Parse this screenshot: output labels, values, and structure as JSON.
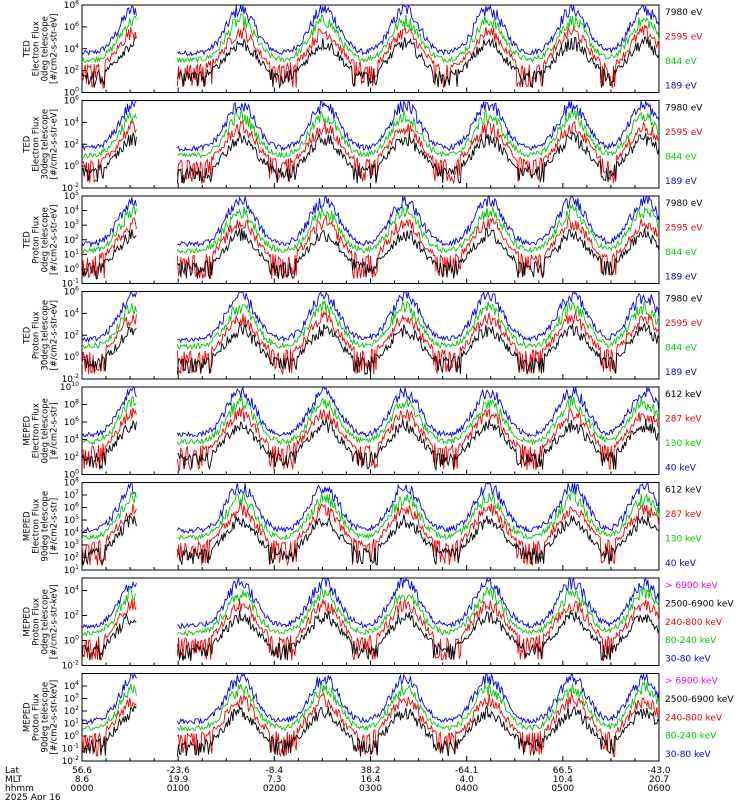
{
  "chart_data": {
    "type": "line",
    "date_label": "2025 Apr 16",
    "x_row_labels": [
      "Lat",
      "MLT",
      "hhmm"
    ],
    "x_ticks": [
      {
        "lat": "56.6",
        "mlt": "8.6",
        "hhmm": "0000"
      },
      {
        "lat": "-23.6",
        "mlt": "19.9",
        "hhmm": "0100"
      },
      {
        "lat": "-8.4",
        "mlt": "7.3",
        "hhmm": "0200"
      },
      {
        "lat": "38.2",
        "mlt": "16.4",
        "hhmm": "0300"
      },
      {
        "lat": "-64.1",
        "mlt": "4.0",
        "hhmm": "0400"
      },
      {
        "lat": "66.5",
        "mlt": "10.4",
        "hhmm": "0500"
      },
      {
        "lat": "-43.0",
        "mlt": "20.7",
        "hhmm": "0600"
      }
    ],
    "xlim": [
      "0000",
      "0600"
    ],
    "panels": [
      {
        "ylabel": [
          "TED",
          "Electron Flux",
          "0deg telescope",
          "[#/cm2-s-str-eV]"
        ],
        "y_exponents": [
          0,
          2,
          4,
          6,
          8
        ],
        "ylim_exp": [
          0,
          8
        ],
        "log_scale": true,
        "legend": [
          {
            "label": "7980 eV",
            "color": "#000000"
          },
          {
            "label": "2595 eV",
            "color": "#ff0000"
          },
          {
            "label": "844 eV",
            "color": "#00cc00"
          },
          {
            "label": "189 eV",
            "color": "#0000ff"
          }
        ]
      },
      {
        "ylabel": [
          "TED",
          "Electron Flux",
          "30deg telescope",
          "[#/cm2-s-str-eV]"
        ],
        "y_exponents": [
          -2,
          0,
          2,
          4,
          6
        ],
        "ylim_exp": [
          -2,
          6
        ],
        "log_scale": true,
        "legend": [
          {
            "label": "7980 eV",
            "color": "#000000"
          },
          {
            "label": "2595 eV",
            "color": "#ff0000"
          },
          {
            "label": "844 eV",
            "color": "#00cc00"
          },
          {
            "label": "189 eV",
            "color": "#0000ff"
          }
        ]
      },
      {
        "ylabel": [
          "TED",
          "Proton Flux",
          "0deg telescope",
          "[#/cm2-s-str-eV]"
        ],
        "y_exponents": [
          -1,
          0,
          1,
          2,
          3,
          4,
          5
        ],
        "ylim_exp": [
          -1,
          5
        ],
        "log_scale": true,
        "legend": [
          {
            "label": "7980 eV",
            "color": "#000000"
          },
          {
            "label": "2595 eV",
            "color": "#ff0000"
          },
          {
            "label": "844 eV",
            "color": "#00cc00"
          },
          {
            "label": "189 eV",
            "color": "#0000ff"
          }
        ]
      },
      {
        "ylabel": [
          "TED",
          "Proton Flux",
          "30deg telescope",
          "[#/cm2-s-str-eV]"
        ],
        "y_exponents": [
          -2,
          0,
          2,
          4,
          6
        ],
        "ylim_exp": [
          -2,
          6
        ],
        "log_scale": true,
        "legend": [
          {
            "label": "7980 eV",
            "color": "#000000"
          },
          {
            "label": "2595 eV",
            "color": "#ff0000"
          },
          {
            "label": "844 eV",
            "color": "#00cc00"
          },
          {
            "label": "189 eV",
            "color": "#0000ff"
          }
        ]
      },
      {
        "ylabel": [
          "MEPED",
          "Electron Flux",
          "0deg telescope",
          "[#/cm2-s-str]"
        ],
        "y_exponents": [
          0,
          2,
          4,
          6,
          8,
          10
        ],
        "ylim_exp": [
          0,
          10
        ],
        "log_scale": true,
        "legend": [
          {
            "label": "612 keV",
            "color": "#000000"
          },
          {
            "label": "287 keV",
            "color": "#ff0000"
          },
          {
            "label": "130 keV",
            "color": "#00cc00"
          },
          {
            "label": "40 keV",
            "color": "#0000ff"
          }
        ]
      },
      {
        "ylabel": [
          "MEPED",
          "Electron Flux",
          "90deg telescope",
          "[#/cm2-s-str]"
        ],
        "y_exponents": [
          1,
          2,
          3,
          4,
          5,
          6,
          7,
          8
        ],
        "ylim_exp": [
          1,
          8
        ],
        "log_scale": true,
        "legend": [
          {
            "label": "612 keV",
            "color": "#000000"
          },
          {
            "label": "287 keV",
            "color": "#ff0000"
          },
          {
            "label": "130 keV",
            "color": "#00cc00"
          },
          {
            "label": "40 keV",
            "color": "#0000ff"
          }
        ]
      },
      {
        "ylabel": [
          "MEPED",
          "Proton Flux",
          "0deg telescope",
          "[#/cm2-s-str-keV]"
        ],
        "y_exponents": [
          -2,
          0,
          2,
          4
        ],
        "ylim_exp": [
          -2,
          5
        ],
        "log_scale": true,
        "legend": [
          {
            "label": "> 6900 keV",
            "color": "#ff00ff"
          },
          {
            "label": "2500-6900 keV",
            "color": "#000000"
          },
          {
            "label": "240-800 keV",
            "color": "#ff0000"
          },
          {
            "label": "80-240 keV",
            "color": "#00cc00"
          },
          {
            "label": "30-80 keV",
            "color": "#0000ff"
          }
        ]
      },
      {
        "ylabel": [
          "MEPED",
          "Proton Flux",
          "90deg telescope",
          "[#/cm2-s-str-keV]"
        ],
        "y_exponents": [
          -2,
          -1,
          0,
          1,
          2,
          3,
          4
        ],
        "ylim_exp": [
          -2,
          5
        ],
        "log_scale": true,
        "legend": [
          {
            "label": "> 6900 keV",
            "color": "#ff00ff"
          },
          {
            "label": "2500-6900 keV",
            "color": "#000000"
          },
          {
            "label": "240-800 keV",
            "color": "#ff0000"
          },
          {
            "label": "80-240 keV",
            "color": "#00cc00"
          },
          {
            "label": "30-80 keV",
            "color": "#0000ff"
          }
        ]
      }
    ]
  }
}
